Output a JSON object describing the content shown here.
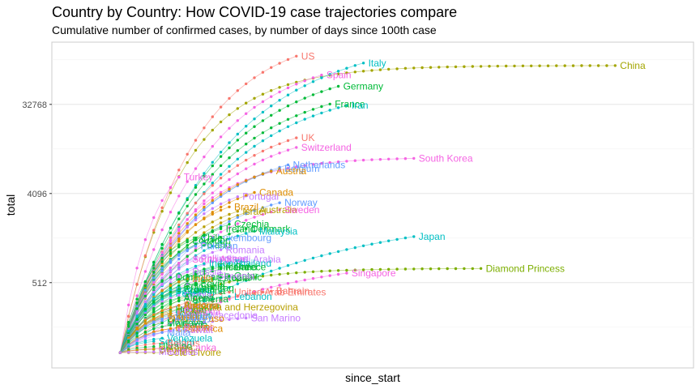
{
  "chart_data": {
    "type": "line",
    "title": "Country by Country: How COVID-19 case trajectories compare",
    "subtitle": "Cumulative number of confirmed cases, by number of days since 100th case",
    "xlabel": "since_start",
    "ylabel": "total",
    "y_scale": "log2",
    "y_ticks": [
      512,
      4096,
      32768
    ],
    "y_tick_labels": [
      "512",
      "4096",
      "32768"
    ],
    "xlim": [
      0,
      62
    ],
    "ylim": [
      70,
      140000
    ],
    "grid": true,
    "legend": "none",
    "series": [
      {
        "name": "China",
        "color": "#A3A500",
        "start": 1,
        "end": 60,
        "end_value": 81000,
        "mid": 62000,
        "curve": 8
      },
      {
        "name": "US",
        "color": "#F8766D",
        "start": 1,
        "end": 22,
        "end_value": 101000,
        "mid": 46000,
        "curve": 2.5
      },
      {
        "name": "Italy",
        "color": "#00BFC4",
        "start": 1,
        "end": 30,
        "end_value": 86000,
        "mid": 40000,
        "curve": 2.4
      },
      {
        "name": "Spain",
        "color": "#F564E3",
        "start": 1,
        "end": 25,
        "end_value": 65000,
        "mid": 30000,
        "curve": 2.5
      },
      {
        "name": "Germany",
        "color": "#00BA38",
        "start": 1,
        "end": 27,
        "end_value": 50000,
        "mid": 22000,
        "curve": 2.4
      },
      {
        "name": "France",
        "color": "#00BA38",
        "start": 1,
        "end": 26,
        "end_value": 33000,
        "mid": 15000,
        "curve": 2.4
      },
      {
        "name": "Iran",
        "color": "#00BFC4",
        "start": 1,
        "end": 28,
        "end_value": 32000,
        "mid": 15000,
        "curve": 2.4
      },
      {
        "name": "UK",
        "color": "#F8766D",
        "start": 1,
        "end": 22,
        "end_value": 15000,
        "mid": 7000,
        "curve": 2.3
      },
      {
        "name": "Switzerland",
        "color": "#F564E3",
        "start": 1,
        "end": 22,
        "end_value": 12000,
        "mid": 5500,
        "curve": 2.3
      },
      {
        "name": "South Korea",
        "color": "#F564E3",
        "start": 1,
        "end": 36,
        "end_value": 9300,
        "mid": 8000,
        "curve": 5
      },
      {
        "name": "Netherlands",
        "color": "#619CFF",
        "start": 1,
        "end": 21,
        "end_value": 8000,
        "mid": 4000,
        "curve": 2.3
      },
      {
        "name": "Belgium",
        "color": "#619CFF",
        "start": 1,
        "end": 20,
        "end_value": 7300,
        "mid": 3500,
        "curve": 2.3
      },
      {
        "name": "Austria",
        "color": "#DE8C00",
        "start": 1,
        "end": 19,
        "end_value": 6900,
        "mid": 3400,
        "curve": 2.3
      },
      {
        "name": "Turkey",
        "color": "#F564E3",
        "start": 1,
        "end": 8,
        "end_value": 6000,
        "mid": 1200,
        "curve": 1.8
      },
      {
        "name": "Canada",
        "color": "#DE8C00",
        "start": 1,
        "end": 17,
        "end_value": 4200,
        "mid": 2000,
        "curve": 2.2
      },
      {
        "name": "Portugal",
        "color": "#C77CFF",
        "start": 1,
        "end": 15,
        "end_value": 3800,
        "mid": 1800,
        "curve": 2.2
      },
      {
        "name": "Brazil",
        "color": "#DE8C00",
        "start": 1,
        "end": 14,
        "end_value": 3000,
        "mid": 1500,
        "curve": 2.2
      },
      {
        "name": "Israel",
        "color": "#B79F00",
        "start": 1,
        "end": 15,
        "end_value": 2700,
        "mid": 1300,
        "curve": 2.2
      },
      {
        "name": "Australia",
        "color": "#B79F00",
        "start": 1,
        "end": 17,
        "end_value": 2800,
        "mid": 1400,
        "curve": 2.2
      },
      {
        "name": "Norway",
        "color": "#619CFF",
        "start": 1,
        "end": 20,
        "end_value": 3300,
        "mid": 1700,
        "curve": 2.2
      },
      {
        "name": "Sweden",
        "color": "#F564E3",
        "start": 1,
        "end": 20,
        "end_value": 2800,
        "mid": 1400,
        "curve": 2.2
      },
      {
        "name": "Czechia",
        "color": "#00BA38",
        "start": 1,
        "end": 14,
        "end_value": 2000,
        "mid": 1000,
        "curve": 2.2
      },
      {
        "name": "Ireland",
        "color": "#00BA38",
        "start": 1,
        "end": 13,
        "end_value": 1800,
        "mid": 900,
        "curve": 2.2
      },
      {
        "name": "Denmark",
        "color": "#00BA38",
        "start": 1,
        "end": 16,
        "end_value": 1800,
        "mid": 900,
        "curve": 2.2
      },
      {
        "name": "Malaysia",
        "color": "#00BFC4",
        "start": 1,
        "end": 17,
        "end_value": 1700,
        "mid": 850,
        "curve": 2.2
      },
      {
        "name": "Luxembourg",
        "color": "#619CFF",
        "start": 1,
        "end": 12,
        "end_value": 1450,
        "mid": 700,
        "curve": 2.2
      },
      {
        "name": "Chile",
        "color": "#00BA38",
        "start": 1,
        "end": 10,
        "end_value": 1450,
        "mid": 700,
        "curve": 2.2
      },
      {
        "name": "Ecuador",
        "color": "#00BA38",
        "start": 1,
        "end": 9,
        "end_value": 1380,
        "mid": 650,
        "curve": 2.2
      },
      {
        "name": "Poland",
        "color": "#00BA38",
        "start": 1,
        "end": 10,
        "end_value": 1240,
        "mid": 600,
        "curve": 2.2
      },
      {
        "name": "Pakistan",
        "color": "#619CFF",
        "start": 1,
        "end": 10,
        "end_value": 1200,
        "mid": 600,
        "curve": 2.2
      },
      {
        "name": "Romania",
        "color": "#C77CFF",
        "start": 1,
        "end": 13,
        "end_value": 1100,
        "mid": 550,
        "curve": 2.2
      },
      {
        "name": "Philippines",
        "color": "#C77CFF",
        "start": 1,
        "end": 10,
        "end_value": 900,
        "mid": 450,
        "curve": 2.2
      },
      {
        "name": "South Africa",
        "color": "#F564E3",
        "start": 1,
        "end": 9,
        "end_value": 880,
        "mid": 440,
        "curve": 2.2
      },
      {
        "name": "Saudi Arabia",
        "color": "#C77CFF",
        "start": 1,
        "end": 13,
        "end_value": 880,
        "mid": 440,
        "curve": 2.2
      },
      {
        "name": "Indonesia",
        "color": "#00BFC4",
        "start": 1,
        "end": 11,
        "end_value": 800,
        "mid": 400,
        "curve": 2.2
      },
      {
        "name": "Thailand",
        "color": "#00BFC4",
        "start": 1,
        "end": 14,
        "end_value": 800,
        "mid": 420,
        "curve": 2.4
      },
      {
        "name": "Finland",
        "color": "#00BA38",
        "start": 1,
        "end": 12,
        "end_value": 740,
        "mid": 380,
        "curve": 2.3
      },
      {
        "name": "Iceland",
        "color": "#00BA38",
        "start": 1,
        "end": 13,
        "end_value": 740,
        "mid": 380,
        "curve": 2.3
      },
      {
        "name": "Japan",
        "color": "#00BFC4",
        "start": 1,
        "end": 36,
        "end_value": 1500,
        "mid": 600,
        "curve": 1.6
      },
      {
        "name": "Singapore",
        "color": "#F564E3",
        "start": 1,
        "end": 28,
        "end_value": 640,
        "mid": 350,
        "curve": 1.6
      },
      {
        "name": "Diamond Princess",
        "color": "#7CAE00",
        "start": 1,
        "end": 44,
        "end_value": 712,
        "mid": 705,
        "curve": 6
      },
      {
        "name": "Russia",
        "color": "#C77CFF",
        "start": 1,
        "end": 9,
        "end_value": 660,
        "mid": 330,
        "curve": 2.2
      },
      {
        "name": "Greece",
        "color": "#00BA38",
        "start": 1,
        "end": 14,
        "end_value": 740,
        "mid": 380,
        "curve": 2.2
      },
      {
        "name": "Qatar",
        "color": "#00BA38",
        "start": 1,
        "end": 14,
        "end_value": 600,
        "mid": 350,
        "curve": 2.2
      },
      {
        "name": "Estonia",
        "color": "#00BA38",
        "start": 1,
        "end": 12,
        "end_value": 570,
        "mid": 300,
        "curve": 2.2
      },
      {
        "name": "Dominican Republic",
        "color": "#00BA38",
        "start": 1,
        "end": 7,
        "end_value": 580,
        "mid": 290,
        "curve": 2.2
      },
      {
        "name": "India",
        "color": "#DE8C00",
        "start": 1,
        "end": 9,
        "end_value": 560,
        "mid": 280,
        "curve": 2.2
      },
      {
        "name": "Egypt",
        "color": "#00BA38",
        "start": 1,
        "end": 10,
        "end_value": 500,
        "mid": 260,
        "curve": 2.2
      },
      {
        "name": "Slovenia",
        "color": "#C77CFF",
        "start": 1,
        "end": 12,
        "end_value": 600,
        "mid": 300,
        "curve": 2.2
      },
      {
        "name": "Iraq",
        "color": "#00BA38",
        "start": 1,
        "end": 12,
        "end_value": 450,
        "mid": 240,
        "curve": 2.2
      },
      {
        "name": "Colombia",
        "color": "#00BA38",
        "start": 1,
        "end": 8,
        "end_value": 470,
        "mid": 240,
        "curve": 2.2
      },
      {
        "name": "Argentina",
        "color": "#00BA38",
        "start": 1,
        "end": 8,
        "end_value": 420,
        "mid": 220,
        "curve": 2.2
      },
      {
        "name": "Panama",
        "color": "#00BFC4",
        "start": 1,
        "end": 7,
        "end_value": 430,
        "mid": 220,
        "curve": 2.2
      },
      {
        "name": "Mexico",
        "color": "#00BFC4",
        "start": 1,
        "end": 8,
        "end_value": 400,
        "mid": 210,
        "curve": 2.2
      },
      {
        "name": "Peru",
        "color": "#00BFC4",
        "start": 1,
        "end": 7,
        "end_value": 400,
        "mid": 210,
        "curve": 2.2
      },
      {
        "name": "Croatia",
        "color": "#00BA38",
        "start": 1,
        "end": 8,
        "end_value": 440,
        "mid": 230,
        "curve": 2.2
      },
      {
        "name": "United Arab Emirates",
        "color": "#F8766D",
        "start": 1,
        "end": 14,
        "end_value": 410,
        "mid": 220,
        "curve": 2.2
      },
      {
        "name": "Bahrain",
        "color": "#F8766D",
        "start": 1,
        "end": 19,
        "end_value": 420,
        "mid": 260,
        "curve": 2.2
      },
      {
        "name": "Lebanon",
        "color": "#00BFC4",
        "start": 1,
        "end": 14,
        "end_value": 370,
        "mid": 200,
        "curve": 2.2
      },
      {
        "name": "Serbia",
        "color": "#C77CFF",
        "start": 1,
        "end": 8,
        "end_value": 380,
        "mid": 200,
        "curve": 2.2
      },
      {
        "name": "Algeria",
        "color": "#00BA38",
        "start": 1,
        "end": 8,
        "end_value": 360,
        "mid": 190,
        "curve": 2.2
      },
      {
        "name": "Armenia",
        "color": "#00BA38",
        "start": 1,
        "end": 9,
        "end_value": 350,
        "mid": 190,
        "curve": 2.2
      },
      {
        "name": "Bulgaria",
        "color": "#00BA38",
        "start": 1,
        "end": 8,
        "end_value": 300,
        "mid": 170,
        "curve": 2.2
      },
      {
        "name": "Morocco",
        "color": "#F8766D",
        "start": 1,
        "end": 8,
        "end_value": 300,
        "mid": 170,
        "curve": 2.2
      },
      {
        "name": "Latvia",
        "color": "#C77CFF",
        "start": 1,
        "end": 7,
        "end_value": 280,
        "mid": 160,
        "curve": 2.2
      },
      {
        "name": "Hungary",
        "color": "#00BA38",
        "start": 1,
        "end": 7,
        "end_value": 270,
        "mid": 150,
        "curve": 2.2
      },
      {
        "name": "Slovakia",
        "color": "#F564E3",
        "start": 1,
        "end": 8,
        "end_value": 260,
        "mid": 150,
        "curve": 2.2
      },
      {
        "name": "Vietnam",
        "color": "#00BFC4",
        "start": 1,
        "end": 7,
        "end_value": 240,
        "mid": 140,
        "curve": 2.2
      },
      {
        "name": "Andorra",
        "color": "#DE8C00",
        "start": 1,
        "end": 8,
        "end_value": 300,
        "mid": 170,
        "curve": 2.2
      },
      {
        "name": "Bosnia and Herzegovina",
        "color": "#B79F00",
        "start": 1,
        "end": 9,
        "end_value": 290,
        "mid": 160,
        "curve": 2.2
      },
      {
        "name": "Jordan",
        "color": "#B79F00",
        "start": 1,
        "end": 7,
        "end_value": 250,
        "mid": 145,
        "curve": 2.2
      },
      {
        "name": "North Macedonia",
        "color": "#C77CFF",
        "start": 1,
        "end": 8,
        "end_value": 240,
        "mid": 140,
        "curve": 2.2
      },
      {
        "name": "San Marino",
        "color": "#C77CFF",
        "start": 1,
        "end": 16,
        "end_value": 224,
        "mid": 170,
        "curve": 2.2
      },
      {
        "name": "Burkina Faso",
        "color": "#DE8C00",
        "start": 1,
        "end": 6,
        "end_value": 222,
        "mid": 130,
        "curve": 2.2
      },
      {
        "name": "Tunisia",
        "color": "#DE8C00",
        "start": 1,
        "end": 6,
        "end_value": 230,
        "mid": 135,
        "curve": 2.2
      },
      {
        "name": "Uruguay",
        "color": "#619CFF",
        "start": 1,
        "end": 7,
        "end_value": 230,
        "mid": 135,
        "curve": 2.2
      },
      {
        "name": "Lithuania",
        "color": "#619CFF",
        "start": 1,
        "end": 6,
        "end_value": 210,
        "mid": 125,
        "curve": 2.2
      },
      {
        "name": "Moldova",
        "color": "#00BA38",
        "start": 1,
        "end": 6,
        "end_value": 200,
        "mid": 120,
        "curve": 2.2
      },
      {
        "name": "Albania",
        "color": "#00BA38",
        "start": 1,
        "end": 7,
        "end_value": 190,
        "mid": 115,
        "curve": 2.2
      },
      {
        "name": "Cyprus",
        "color": "#F8766D",
        "start": 1,
        "end": 8,
        "end_value": 180,
        "mid": 110,
        "curve": 2.2
      },
      {
        "name": "Brunei",
        "color": "#F8766D",
        "start": 1,
        "end": 8,
        "end_value": 180,
        "mid": 110,
        "curve": 2.2
      },
      {
        "name": "Costa Rica",
        "color": "#DE8C00",
        "start": 1,
        "end": 7,
        "end_value": 175,
        "mid": 108,
        "curve": 2.2
      },
      {
        "name": "Kuwait",
        "color": "#C77CFF",
        "start": 1,
        "end": 8,
        "end_value": 170,
        "mid": 110,
        "curve": 2.2
      },
      {
        "name": "Malta",
        "color": "#619CFF",
        "start": 1,
        "end": 6,
        "end_value": 160,
        "mid": 105,
        "curve": 2.2
      },
      {
        "name": "Venezuela",
        "color": "#00BFC4",
        "start": 1,
        "end": 6,
        "end_value": 140,
        "mid": 100,
        "curve": 2.2
      },
      {
        "name": "Senegal",
        "color": "#00BFC4",
        "start": 1,
        "end": 5,
        "end_value": 130,
        "mid": 95,
        "curve": 2.2
      },
      {
        "name": "Belarus",
        "color": "#F8766D",
        "start": 1,
        "end": 6,
        "end_value": 125,
        "mid": 95,
        "curve": 2.2
      },
      {
        "name": "Sri Lanka",
        "color": "#F564E3",
        "start": 1,
        "end": 7,
        "end_value": 112,
        "mid": 90,
        "curve": 2.2
      },
      {
        "name": "Ukraine",
        "color": "#00BA38",
        "start": 1,
        "end": 5,
        "end_value": 115,
        "mid": 90,
        "curve": 2.2
      },
      {
        "name": "Cuba",
        "color": "#F8766D",
        "start": 1,
        "end": 6,
        "end_value": 110,
        "mid": 90,
        "curve": 2.2
      },
      {
        "name": "Georgia",
        "color": "#B79F00",
        "start": 1,
        "end": 5,
        "end_value": 108,
        "mid": 88,
        "curve": 2.2
      },
      {
        "name": "Cote d'Ivoire",
        "color": "#B79F00",
        "start": 1,
        "end": 6,
        "end_value": 100,
        "mid": 85,
        "curve": 2.2
      },
      {
        "name": "Mauritius",
        "color": "#C77CFF",
        "start": 1,
        "end": 5,
        "end_value": 102,
        "mid": 86,
        "curve": 2.2
      }
    ]
  }
}
